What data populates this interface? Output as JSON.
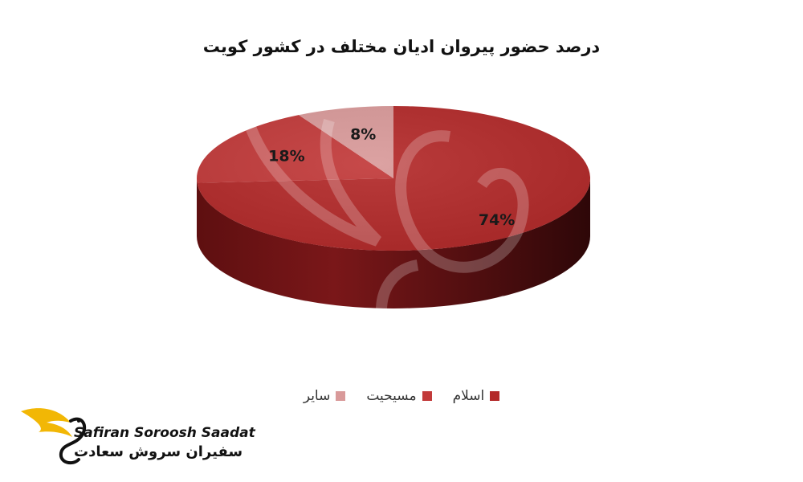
{
  "chart_data": {
    "type": "pie",
    "title": "درصد حضور پیروان ادیان مختلف در کشور کویت",
    "slices": [
      {
        "name": "اسلام",
        "value": 74,
        "label": "74%",
        "color": "#b32a2a"
      },
      {
        "name": "مسیحیت",
        "value": 18,
        "label": "18%",
        "color": "#c23a3a"
      },
      {
        "name": "سایر",
        "value": 8,
        "label": "8%",
        "color": "#d99a9a"
      }
    ],
    "legend_position": "bottom",
    "style": "3d"
  },
  "watermark": {
    "text_en": "Safiran Soroosh Saadat",
    "text_fa": "سفیران سروش سعادت",
    "accent_color": "#f2b705"
  }
}
